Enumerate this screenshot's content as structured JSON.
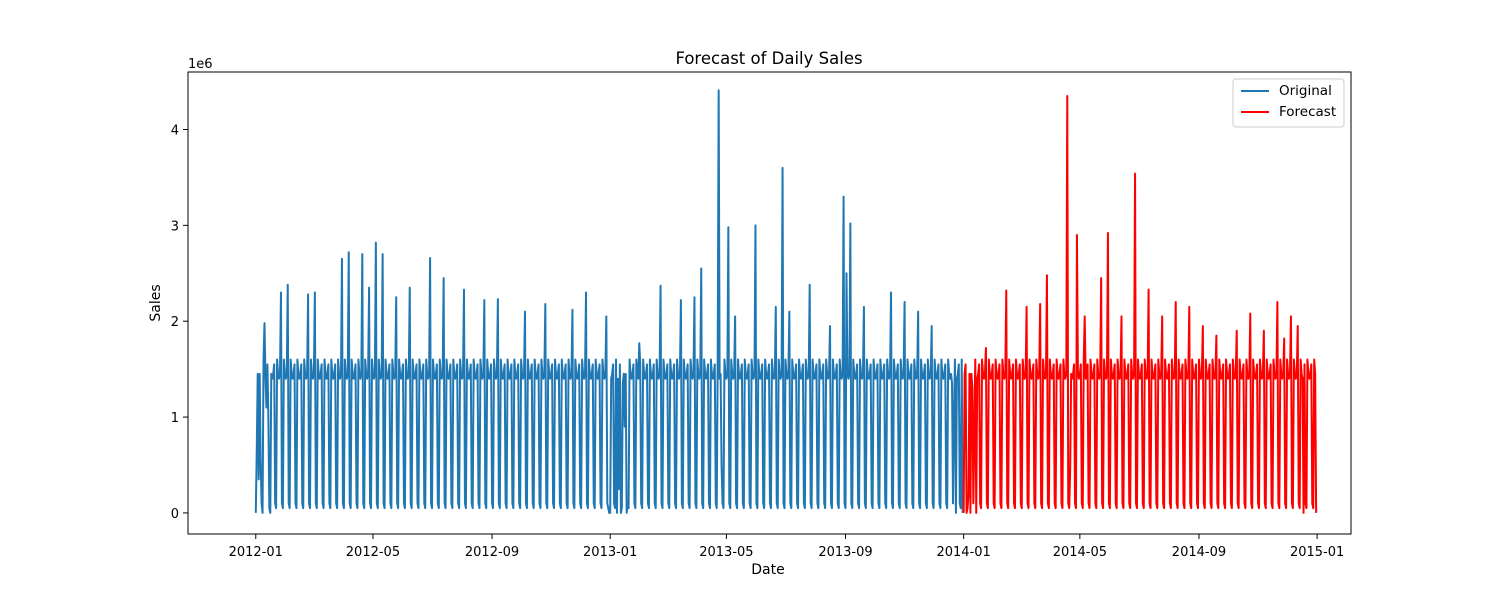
{
  "chart_data": {
    "type": "line",
    "title": "Forecast of Daily Sales",
    "xlabel": "Date",
    "ylabel": "Sales",
    "y_offset_label": "1e6",
    "x_range": [
      "2011-10-23",
      "2015-02-05"
    ],
    "ylim": [
      -0.22,
      4.6
    ],
    "y_ticks": [
      0,
      1,
      2,
      3,
      4
    ],
    "x_ticks": [
      "2012-01",
      "2012-05",
      "2012-09",
      "2013-01",
      "2013-05",
      "2013-09",
      "2014-01",
      "2014-05",
      "2014-09",
      "2015-01"
    ],
    "grid": false,
    "legend": {
      "position": "top-right"
    },
    "series": [
      {
        "name": "Original",
        "color": "#1f77b4",
        "start": "2012-01-01",
        "end": "2013-12-31",
        "baseline_pattern": [
          0.05,
          1.6,
          1.45,
          1.4,
          1.45,
          1.55,
          0.1
        ],
        "points": [
          [
            "2012-01-01",
            0.0
          ],
          [
            "2012-01-02",
            0.65
          ],
          [
            "2012-01-04",
            0.35
          ],
          [
            "2012-01-06",
            0.55
          ],
          [
            "2012-01-08",
            0.0
          ],
          [
            "2012-01-10",
            1.98
          ],
          [
            "2012-01-12",
            1.1
          ],
          [
            "2012-01-14",
            1.0
          ],
          [
            "2012-01-16",
            0.0
          ],
          [
            "2012-01-27",
            2.3
          ],
          [
            "2012-02-03",
            2.38
          ],
          [
            "2012-02-24",
            2.28
          ],
          [
            "2012-03-02",
            2.3
          ],
          [
            "2012-03-30",
            2.65
          ],
          [
            "2012-04-06",
            2.72
          ],
          [
            "2012-04-20",
            2.7
          ],
          [
            "2012-04-27",
            2.35
          ],
          [
            "2012-05-04",
            2.82
          ],
          [
            "2012-05-11",
            2.7
          ],
          [
            "2012-05-25",
            2.25
          ],
          [
            "2012-06-08",
            2.35
          ],
          [
            "2012-06-29",
            2.66
          ],
          [
            "2012-07-13",
            2.45
          ],
          [
            "2012-08-03",
            2.33
          ],
          [
            "2012-08-24",
            2.22
          ],
          [
            "2012-09-07",
            2.23
          ],
          [
            "2012-10-05",
            2.1
          ],
          [
            "2012-10-26",
            2.18
          ],
          [
            "2012-11-23",
            2.12
          ],
          [
            "2012-12-07",
            2.3
          ],
          [
            "2012-12-28",
            2.05
          ],
          [
            "2012-12-31",
            0.0
          ],
          [
            "2013-01-01",
            0.0
          ],
          [
            "2013-01-08",
            0.0
          ],
          [
            "2013-01-10",
            0.25
          ],
          [
            "2013-01-12",
            0.0
          ],
          [
            "2013-01-14",
            1.35
          ],
          [
            "2013-01-16",
            0.9
          ],
          [
            "2013-01-18",
            0.0
          ],
          [
            "2013-01-31",
            1.77
          ],
          [
            "2013-02-22",
            2.37
          ],
          [
            "2013-03-15",
            2.22
          ],
          [
            "2013-03-29",
            2.25
          ],
          [
            "2013-04-05",
            2.55
          ],
          [
            "2013-04-23",
            4.41
          ],
          [
            "2013-04-26",
            0.5
          ],
          [
            "2013-05-03",
            2.98
          ],
          [
            "2013-05-10",
            2.05
          ],
          [
            "2013-05-31",
            3.0
          ],
          [
            "2013-06-21",
            2.15
          ],
          [
            "2013-06-28",
            3.6
          ],
          [
            "2013-07-05",
            2.1
          ],
          [
            "2013-07-26",
            2.38
          ],
          [
            "2013-08-16",
            1.95
          ],
          [
            "2013-08-30",
            3.3
          ],
          [
            "2013-09-02",
            2.5
          ],
          [
            "2013-09-06",
            3.02
          ],
          [
            "2013-09-20",
            2.15
          ],
          [
            "2013-10-18",
            2.3
          ],
          [
            "2013-11-01",
            2.2
          ],
          [
            "2013-11-15",
            2.1
          ],
          [
            "2013-11-29",
            1.95
          ],
          [
            "2013-12-13",
            1.55
          ],
          [
            "2013-12-20",
            1.35
          ],
          [
            "2013-12-22",
            0.95
          ],
          [
            "2013-12-24",
            0.0
          ],
          [
            "2013-12-31",
            0.0
          ]
        ]
      },
      {
        "name": "Forecast",
        "color": "#ff0000",
        "start": "2014-01-01",
        "end": "2014-12-31",
        "baseline_pattern": [
          0.05,
          1.6,
          1.45,
          1.4,
          1.45,
          1.55,
          0.1
        ],
        "points": [
          [
            "2014-01-01",
            0.0
          ],
          [
            "2014-01-04",
            0.0
          ],
          [
            "2014-01-06",
            0.2
          ],
          [
            "2014-01-08",
            0.0
          ],
          [
            "2014-01-10",
            1.3
          ],
          [
            "2014-01-12",
            0.85
          ],
          [
            "2014-01-14",
            0.0
          ],
          [
            "2014-01-24",
            1.72
          ],
          [
            "2014-02-14",
            2.32
          ],
          [
            "2014-03-07",
            2.15
          ],
          [
            "2014-03-21",
            2.18
          ],
          [
            "2014-03-28",
            2.48
          ],
          [
            "2014-04-18",
            4.35
          ],
          [
            "2014-04-21",
            0.45
          ],
          [
            "2014-04-28",
            2.9
          ],
          [
            "2014-05-06",
            2.05
          ],
          [
            "2014-05-23",
            2.45
          ],
          [
            "2014-05-30",
            2.92
          ],
          [
            "2014-06-13",
            2.05
          ],
          [
            "2014-06-27",
            3.54
          ],
          [
            "2014-07-11",
            2.33
          ],
          [
            "2014-07-25",
            2.05
          ],
          [
            "2014-08-08",
            2.2
          ],
          [
            "2014-08-22",
            2.15
          ],
          [
            "2014-09-05",
            1.95
          ],
          [
            "2014-09-19",
            1.85
          ],
          [
            "2014-10-10",
            1.9
          ],
          [
            "2014-10-24",
            2.08
          ],
          [
            "2014-11-07",
            1.9
          ],
          [
            "2014-11-21",
            2.2
          ],
          [
            "2014-11-28",
            1.82
          ],
          [
            "2014-12-05",
            2.05
          ],
          [
            "2014-12-12",
            1.95
          ],
          [
            "2014-12-15",
            1.6
          ],
          [
            "2014-12-18",
            0.0
          ],
          [
            "2014-12-31",
            0.0
          ]
        ]
      }
    ]
  }
}
